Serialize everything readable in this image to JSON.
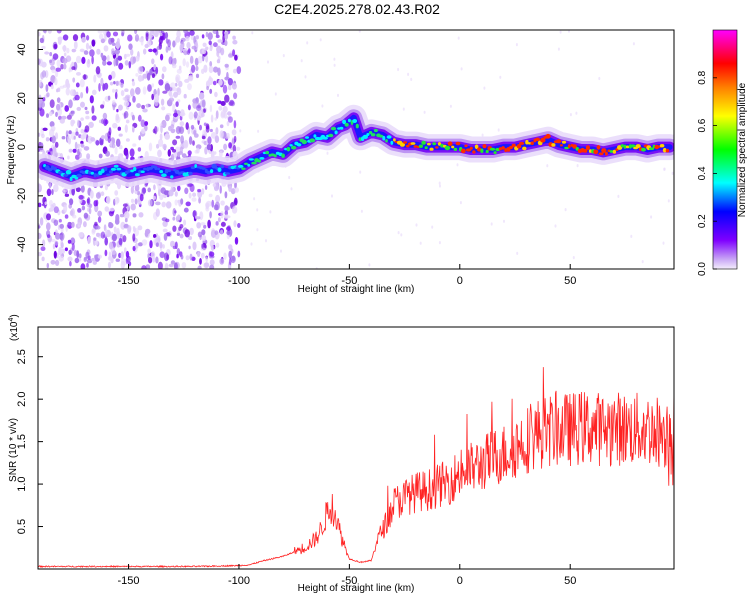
{
  "title": "C2E4.2025.278.02.43.R02",
  "chart_data": [
    {
      "type": "heatmap",
      "name": "spectrogram",
      "xlabel": "Height of straight line (km)",
      "ylabel": "Frequency (Hz)",
      "xlim": [
        -191,
        97
      ],
      "ylim": [
        -50,
        48
      ],
      "xticks": [
        -150,
        -100,
        -50,
        0,
        50
      ],
      "xtick_labels": [
        "-150",
        "-100",
        "-50",
        "0",
        "50"
      ],
      "yticks": [
        -40,
        -20,
        0,
        20,
        40
      ],
      "ytick_labels": [
        "-40",
        "-20",
        "0",
        "20",
        "40"
      ],
      "noise_region_km": [
        -191,
        -100
      ],
      "ridge": {
        "x": [
          -188,
          -182,
          -176,
          -170,
          -165,
          -160,
          -155,
          -150,
          -145,
          -140,
          -135,
          -130,
          -125,
          -120,
          -115,
          -110,
          -105,
          -100,
          -95,
          -90,
          -85,
          -80,
          -75,
          -70,
          -65,
          -60,
          -55,
          -52,
          -48,
          -45,
          -40,
          -35,
          -30,
          -25,
          -20,
          -15,
          -10,
          -5,
          0,
          5,
          10,
          15,
          20,
          25,
          30,
          35,
          40,
          45,
          50,
          55,
          60,
          65,
          70,
          75,
          80,
          85,
          90,
          95
        ],
        "y": [
          -8,
          -10,
          -12,
          -10,
          -11,
          -10,
          -9,
          -11,
          -10,
          -9,
          -10,
          -11,
          -10,
          -9,
          -10,
          -9,
          -10,
          -9,
          -6,
          -4,
          -2,
          -3,
          1,
          2,
          5,
          4,
          8,
          9,
          12,
          4,
          6,
          5,
          2,
          1,
          1,
          0,
          0,
          0,
          0,
          -1,
          -1,
          -1,
          0,
          0,
          1,
          2,
          3,
          1,
          0,
          -1,
          -1,
          -2,
          -1,
          0,
          0,
          -1,
          0,
          0
        ]
      },
      "colorbar": {
        "label": "Normalized spectral amplitude",
        "range": [
          0,
          1
        ],
        "ticks": [
          0.0,
          0.2,
          0.4,
          0.6,
          0.8
        ],
        "tick_labels": [
          "0.0",
          "0.2",
          "0.4",
          "0.6",
          "0.8"
        ],
        "colors": [
          "#f4eefc",
          "#7f00ff",
          "#0000ff",
          "#00ffff",
          "#00ff00",
          "#ffff00",
          "#ff7f00",
          "#ff0000",
          "#ff00ff"
        ]
      }
    },
    {
      "type": "line",
      "name": "snr",
      "xlabel": "Height of straight line (km)",
      "ylabel": "SNR (10 * v/v)",
      "yscale_note": "(x10",
      "yscale_exp": "4",
      "yscale_close": ")",
      "xlim": [
        -191,
        97
      ],
      "ylim": [
        0,
        2.85
      ],
      "xticks": [
        -150,
        -100,
        -50,
        0,
        50
      ],
      "xtick_labels": [
        "-150",
        "-100",
        "-50",
        "0",
        "50"
      ],
      "yticks": [
        0.5,
        1.0,
        1.5,
        2.0,
        2.5
      ],
      "ytick_labels": [
        "0.5",
        "1.0",
        "1.5",
        "2.0",
        "2.5"
      ],
      "line_color": "#ff2222",
      "envelope": {
        "x": [
          -191,
          -170,
          -150,
          -120,
          -100,
          -95,
          -90,
          -85,
          -80,
          -75,
          -70,
          -65,
          -62,
          -60,
          -58,
          -56,
          -54,
          -50,
          -45,
          -40,
          -38,
          -35,
          -32,
          -30,
          -25,
          -20,
          -15,
          -10,
          -5,
          0,
          5,
          10,
          15,
          20,
          25,
          30,
          35,
          40,
          45,
          50,
          55,
          60,
          65,
          70,
          75,
          80,
          85,
          90,
          95,
          97
        ],
        "y": [
          0.03,
          0.03,
          0.03,
          0.03,
          0.04,
          0.05,
          0.09,
          0.12,
          0.15,
          0.2,
          0.25,
          0.35,
          0.5,
          0.65,
          0.7,
          0.6,
          0.4,
          0.12,
          0.08,
          0.1,
          0.3,
          0.45,
          0.6,
          0.75,
          0.82,
          0.88,
          0.9,
          0.95,
          1.0,
          1.1,
          1.15,
          1.2,
          1.28,
          1.32,
          1.4,
          1.48,
          1.55,
          1.58,
          1.6,
          1.6,
          1.62,
          1.62,
          1.6,
          1.62,
          1.6,
          1.6,
          1.6,
          1.58,
          1.55,
          1.5
        ]
      }
    }
  ]
}
